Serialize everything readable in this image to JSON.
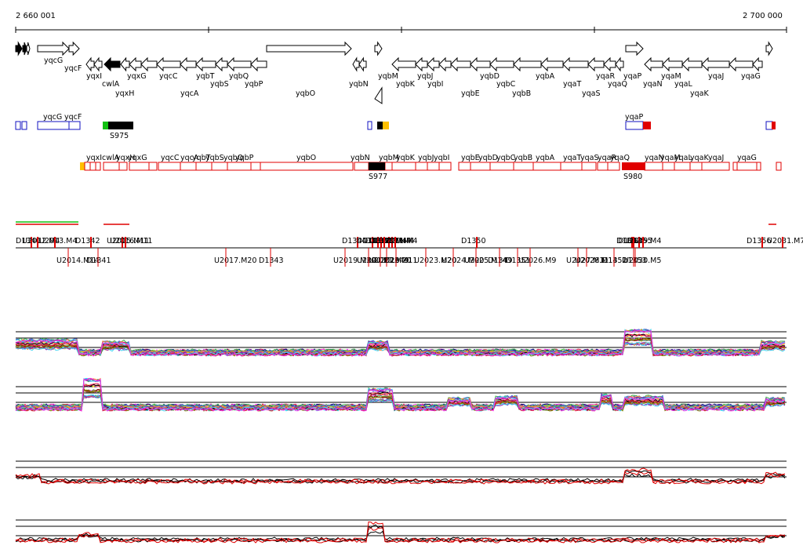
{
  "coordinates": {
    "start": "2 660 001",
    "end": "2 700 000"
  },
  "genes_top": [
    {
      "name": "yqcG"
    },
    {
      "name": "yqcF"
    },
    {
      "name": "yqxI"
    },
    {
      "name": "cwlA"
    },
    {
      "name": "yqxH"
    },
    {
      "name": "yqxG"
    },
    {
      "name": "yqcC"
    },
    {
      "name": "yqcA"
    },
    {
      "name": "yqbT"
    },
    {
      "name": "yqbS"
    },
    {
      "name": "yqbQ"
    },
    {
      "name": "yqbP"
    },
    {
      "name": "yqbO"
    },
    {
      "name": "yqbN"
    },
    {
      "name": "yqbM"
    },
    {
      "name": "yqbK"
    },
    {
      "name": "yqbJ"
    },
    {
      "name": "yqbI"
    },
    {
      "name": "yqbE"
    },
    {
      "name": "yqbD"
    },
    {
      "name": "yqbC"
    },
    {
      "name": "yqbB"
    },
    {
      "name": "yqbA"
    },
    {
      "name": "yqaT"
    },
    {
      "name": "yqaS"
    },
    {
      "name": "yqaR"
    },
    {
      "name": "yqaQ"
    },
    {
      "name": "yqaP"
    },
    {
      "name": "yqaN"
    },
    {
      "name": "yqaM"
    },
    {
      "name": "yqaL"
    },
    {
      "name": "yqaK"
    },
    {
      "name": "yqaJ"
    },
    {
      "name": "yqaG"
    }
  ],
  "track2_labels": [
    "yqcG",
    "yqcF",
    "S975",
    "yqaP"
  ],
  "track3_genes": [
    "yqxI",
    "cwlA",
    "yqxH",
    "yqxG",
    "yqcC",
    "yqcA",
    "yqbT",
    "yqbS",
    "yqbQ",
    "yqbP",
    "yqbO",
    "yqbN",
    "yqbM",
    "yqbK",
    "yqbJ",
    "yqbI",
    "yqbE",
    "yqbD",
    "yqbC",
    "yqbB",
    "yqbA",
    "yqaT",
    "yqaS",
    "yqaR",
    "yqaQ",
    "yqaN",
    "yqaM",
    "yqaL",
    "yqaK",
    "yqaJ",
    "yqaG"
  ],
  "track3_labels": [
    "S977",
    "S980"
  ],
  "features_above": [
    "D1340",
    "U2012.M4",
    "U2013.M4",
    "D1342",
    "U2015.M11",
    "U2016.M11",
    "D1344",
    "U2018.M4",
    "U2019.M4",
    "U2020.M4",
    "U2021.M4",
    "D1345",
    "D1346",
    "D1347",
    "D1348",
    "D1350",
    "D1352",
    "U2029.M4",
    "D1354",
    "D1355",
    "D1356",
    "U2031.M7"
  ],
  "features_below": [
    "U2014.M14",
    "D1341",
    "U2017.M20",
    "D1343",
    "U2019.M20",
    "U2020.M20",
    "U2021.M20",
    "U2022.M11",
    "D1349",
    "U2023.M20",
    "U2024.M20",
    "U2025.M14",
    "D1349",
    "D1351",
    "U2026.M9",
    "U2027.M11",
    "U2028.M14",
    "D1352",
    "D1353",
    "U2030.M5"
  ],
  "palette": {
    "gene_outline": "#000000",
    "blue": "#1010c0",
    "red": "#e00000",
    "green": "#10c010",
    "yellow": "#ffc000",
    "black": "#000000"
  }
}
